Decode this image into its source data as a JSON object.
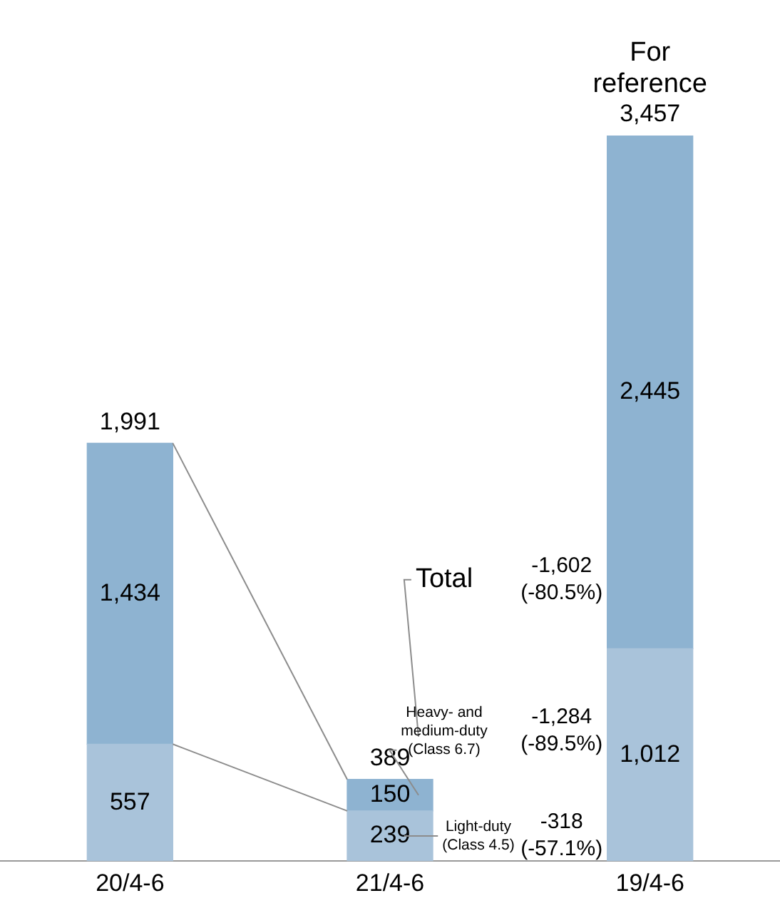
{
  "chart_data": {
    "type": "bar",
    "stacked": true,
    "categories": [
      "20/4-6",
      "21/4-6",
      "19/4-6"
    ],
    "series": [
      {
        "color": "#a9c3da",
        "values": [
          557,
          239,
          1012
        ],
        "value_labels": [
          "557",
          "239",
          "1,012"
        ]
      },
      {
        "color": "#8eb3d1",
        "values": [
          1434,
          150,
          2445
        ],
        "value_labels": [
          "1,434",
          "150",
          "2,445"
        ]
      }
    ],
    "ylim": [
      0,
      3457
    ],
    "totals": [
      "1,991",
      "389",
      "3,457"
    ],
    "tick_labels": "x",
    "grid": false,
    "legend": false,
    "annotations": [
      "For reference",
      "Total",
      "Heavy- and medium-duty (Class 6.7)",
      "Light-duty (Class 4.5)",
      "-1,602 (-80.5%)",
      "-1,284 (-89.5%)",
      "-318 (-57.1%)"
    ]
  }
}
